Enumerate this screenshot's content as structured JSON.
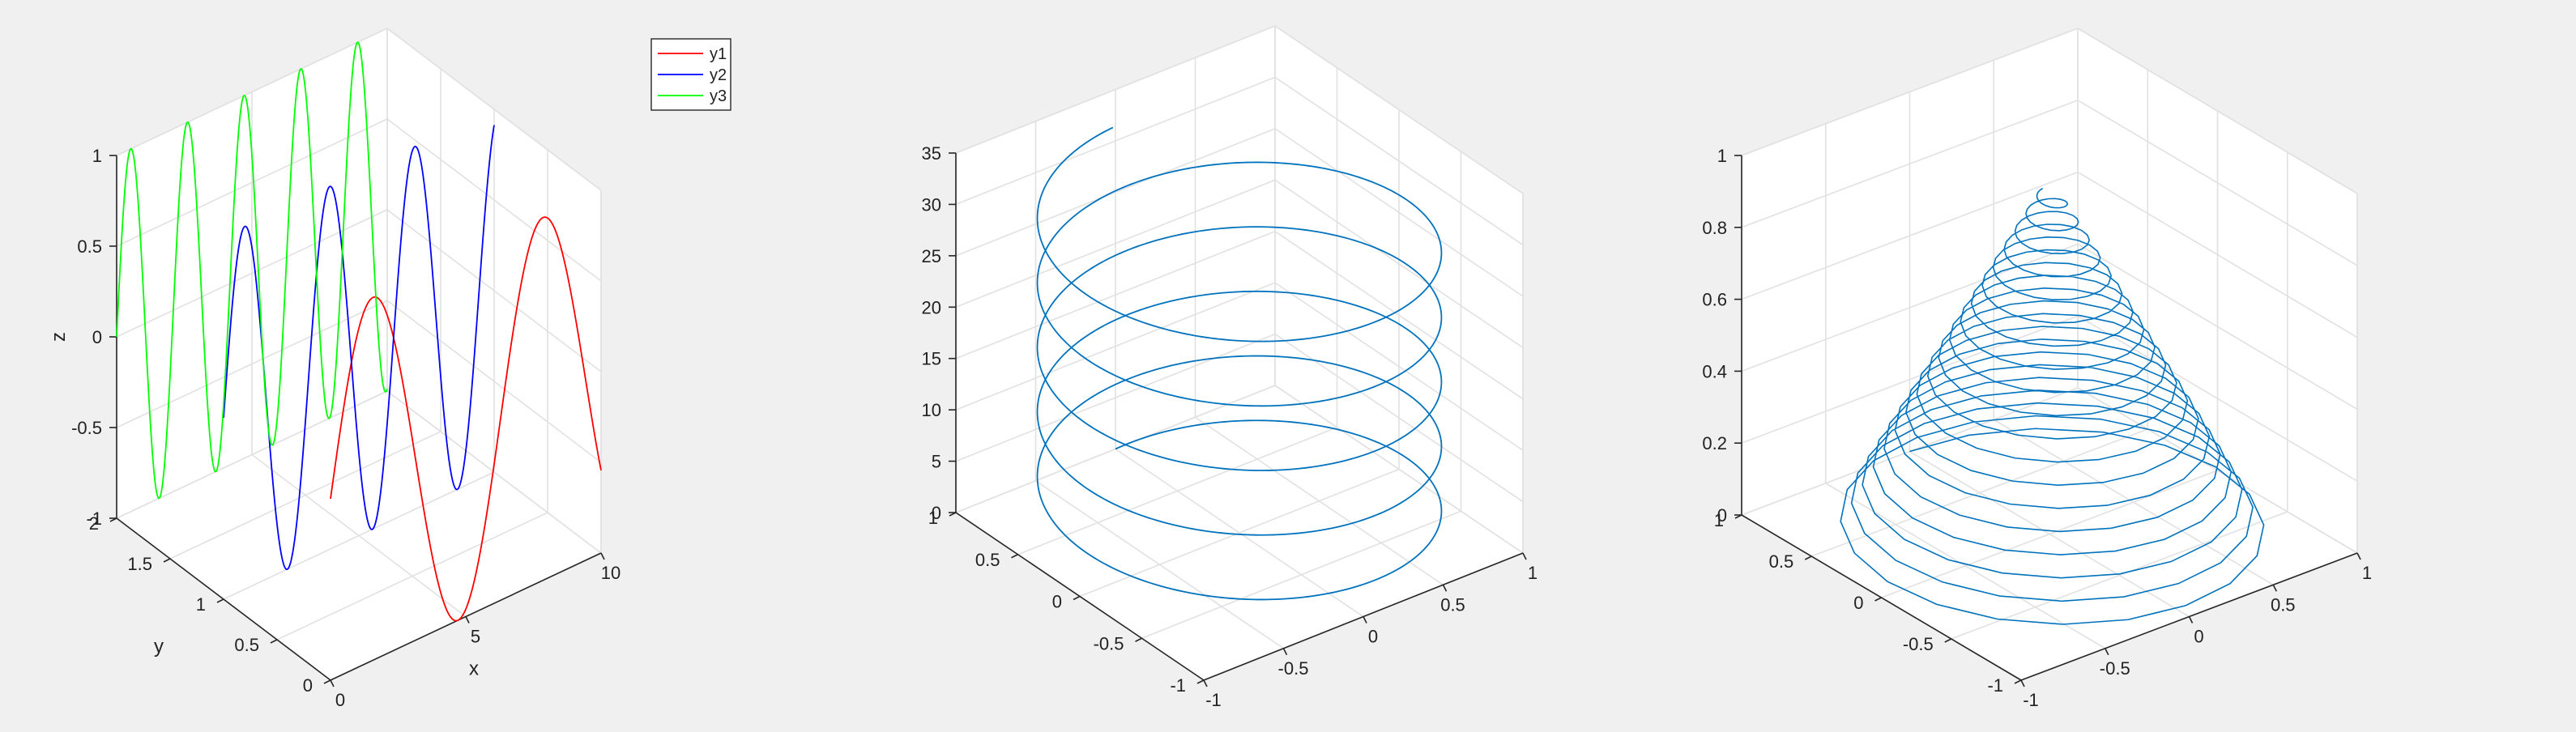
{
  "colors": {
    "y1": "#ff0000",
    "y2": "#0000ff",
    "y3": "#00ff00",
    "default_line": "#0072bd"
  },
  "chart_data": [
    {
      "type": "line",
      "dimension": "3d",
      "xlabel": "x",
      "ylabel": "y",
      "zlabel": "z",
      "xlim": [
        0,
        10
      ],
      "ylim": [
        0,
        2
      ],
      "zlim": [
        -1,
        1
      ],
      "xticks": [
        "0",
        "5",
        "10"
      ],
      "yticks": [
        "0",
        "0.5",
        "1",
        "1.5",
        "2"
      ],
      "zticks": [
        "-1",
        "-0.5",
        "0",
        "0.5",
        "1"
      ],
      "grid": true,
      "legend": {
        "placement": "top-right",
        "entries": [
          "y1",
          "y2",
          "y3"
        ]
      },
      "series": [
        {
          "name": "y1",
          "y": 0,
          "x": [
            0,
            10
          ],
          "function": "sin(x)"
        },
        {
          "name": "y2",
          "y": 1,
          "x": [
            0,
            10
          ],
          "function": "sin(2x)"
        },
        {
          "name": "y3",
          "y": 2,
          "x": [
            0,
            10
          ],
          "function": "sin(3x)"
        }
      ]
    },
    {
      "type": "line",
      "dimension": "3d",
      "description_shape": "helix",
      "x": "sin(t)",
      "y": "cos(t)",
      "z": "t",
      "t_range": [
        0,
        31.4
      ],
      "xlim": [
        -1,
        1
      ],
      "ylim": [
        -1,
        1
      ],
      "zlim": [
        0,
        35
      ],
      "xticks": [
        "-1",
        "-0.5",
        "0",
        "0.5",
        "1"
      ],
      "yticks": [
        "-1",
        "-0.5",
        "0",
        "0.5",
        "1"
      ],
      "zticks": [
        "0",
        "5",
        "10",
        "15",
        "20",
        "25",
        "30",
        "35"
      ],
      "grid": true
    },
    {
      "type": "line",
      "dimension": "3d",
      "description_shape": "conical spiral",
      "x": "(1 - z) * sin(t)",
      "y": "(1 - z) * cos(t)",
      "z": "t / 125.7",
      "t_range": [
        0,
        119.4
      ],
      "xlim": [
        -1,
        1
      ],
      "ylim": [
        -1,
        1
      ],
      "zlim": [
        0,
        1
      ],
      "xticks": [
        "-1",
        "-0.5",
        "0",
        "0.5",
        "1"
      ],
      "yticks": [
        "-1",
        "-0.5",
        "0",
        "0.5",
        "1"
      ],
      "zticks": [
        "0",
        "0.2",
        "0.4",
        "0.6",
        "0.8",
        "1"
      ],
      "grid": true
    }
  ]
}
